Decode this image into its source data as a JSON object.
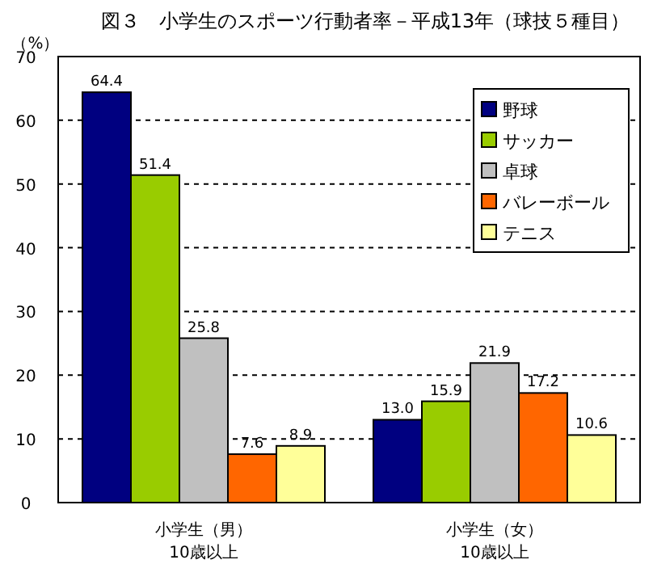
{
  "chart_data": {
    "type": "bar",
    "title": "図３　小学生のスポーツ行動者率－平成13年（球技５種目）",
    "ylabel": "（%）",
    "categories": [
      "小学生（男）\n10歳以上",
      "小学生（女）\n10歳以上"
    ],
    "series": [
      {
        "name": "野球",
        "color": "#000080",
        "values": [
          64.4,
          13.0
        ],
        "value_labels": [
          "64.4",
          "13.0"
        ]
      },
      {
        "name": "サッカー",
        "color": "#99cc00",
        "values": [
          51.4,
          15.9
        ],
        "value_labels": [
          "51.4",
          "15.9"
        ]
      },
      {
        "name": "卓球",
        "color": "#c0c0c0",
        "values": [
          25.8,
          21.9
        ],
        "value_labels": [
          "25.8",
          "21.9"
        ]
      },
      {
        "name": "バレーボール",
        "color": "#ff6600",
        "values": [
          7.6,
          17.2
        ],
        "value_labels": [
          "7.6",
          "17.2"
        ]
      },
      {
        "name": "テニス",
        "color": "#ffff99",
        "values": [
          8.9,
          10.6
        ],
        "value_labels": [
          "8.9",
          "10.6"
        ]
      }
    ],
    "ylim": [
      0,
      70
    ],
    "yticks": [
      0,
      10,
      20,
      30,
      40,
      50,
      60,
      70
    ],
    "grid": "y",
    "legend": "top right"
  }
}
